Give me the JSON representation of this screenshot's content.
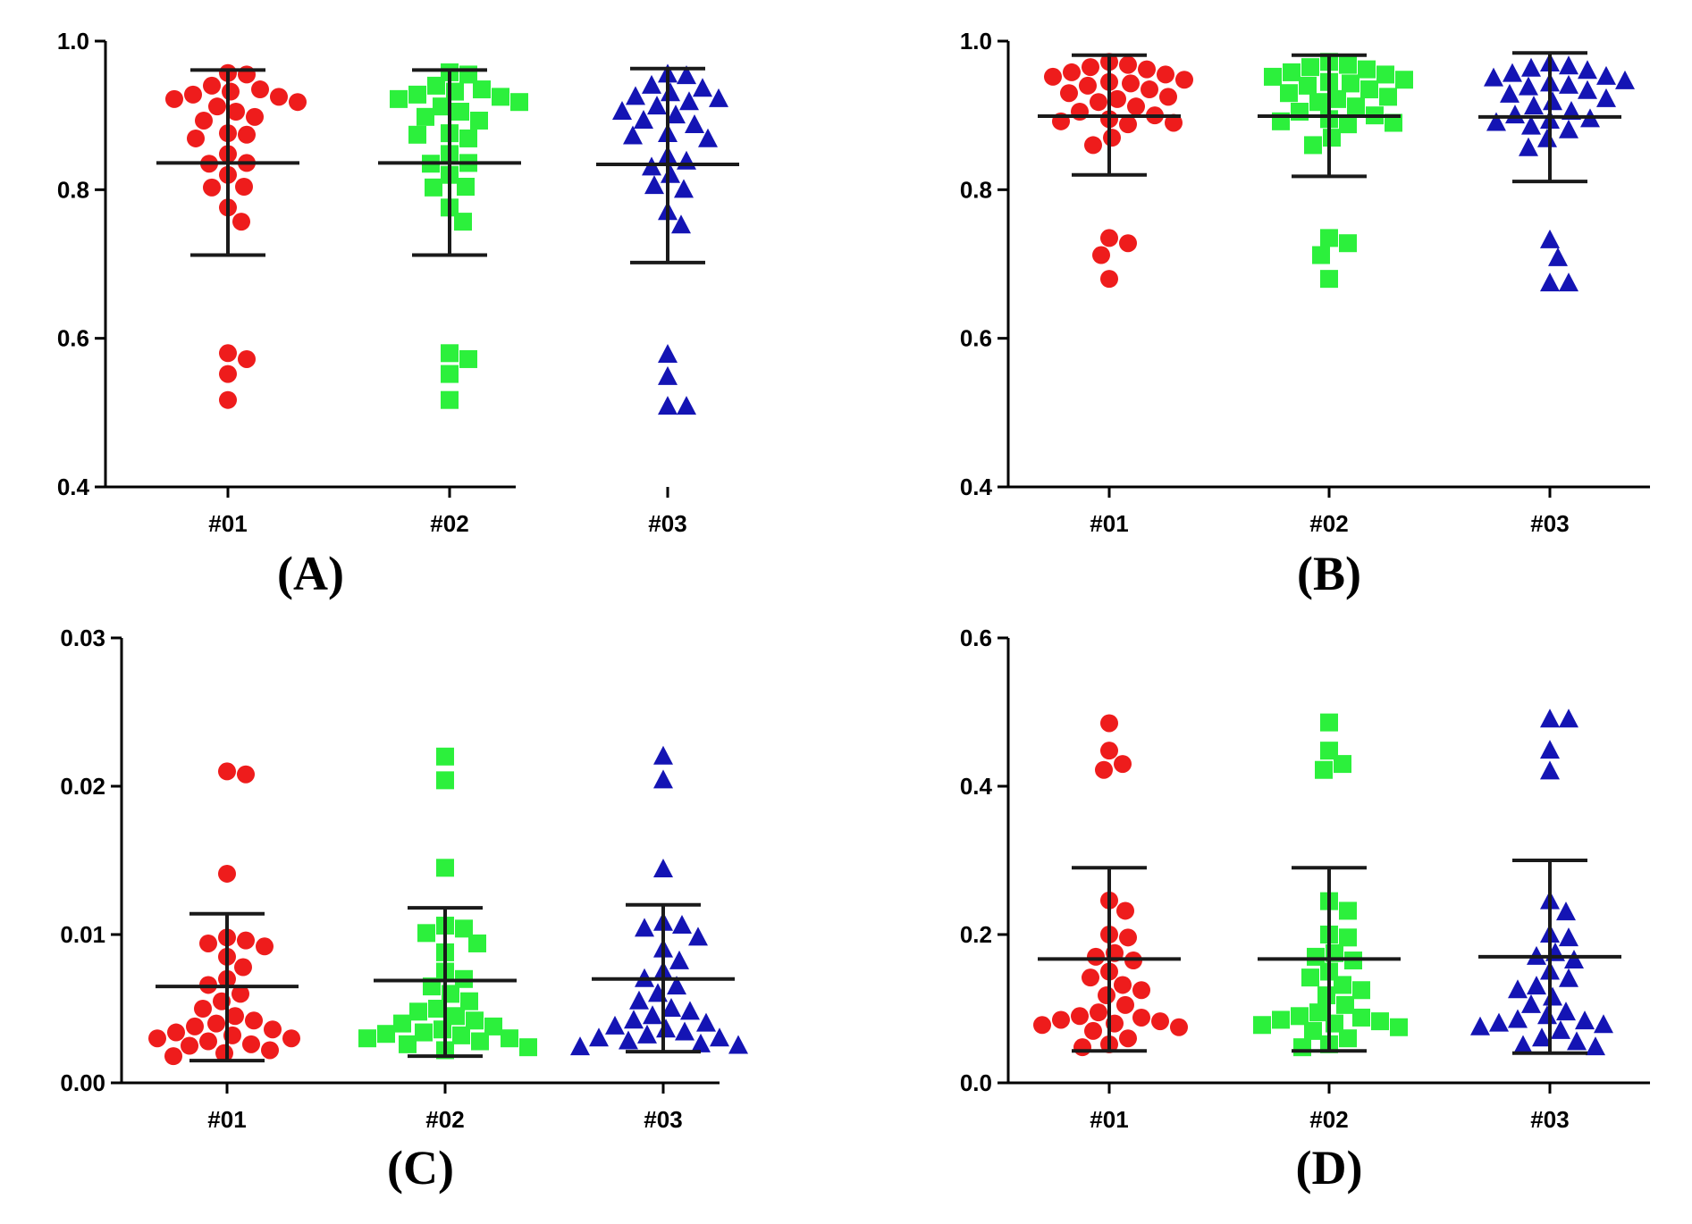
{
  "colors": {
    "#01": "#ee1c1c",
    "#02": "#2cf03c",
    "#03": "#1414b4",
    "axis": "#000000",
    "error_bar": "#1a1a1a"
  },
  "chart_data": [
    {
      "type": "scatter",
      "panel_label": "(A)",
      "categories": [
        "#01",
        "#02",
        "#03"
      ],
      "markers": [
        "circle",
        "square",
        "triangle"
      ],
      "ylim": [
        0.4,
        1.0
      ],
      "yticks": [
        0.4,
        0.6,
        0.8,
        1.0
      ],
      "ytick_labels": [
        "0.4",
        "0.6",
        "0.8",
        "1.0"
      ],
      "series": [
        {
          "name": "#01",
          "mean": 0.836,
          "sd_low": 0.712,
          "sd_high": 0.961,
          "values": [
            0.957,
            0.955,
            0.94,
            0.935,
            0.932,
            0.928,
            0.925,
            0.922,
            0.918,
            0.912,
            0.905,
            0.898,
            0.893,
            0.876,
            0.874,
            0.869,
            0.848,
            0.836,
            0.835,
            0.82,
            0.804,
            0.803,
            0.776,
            0.757,
            0.58,
            0.572,
            0.552,
            0.517
          ]
        },
        {
          "name": "#02",
          "mean": 0.836,
          "sd_low": 0.712,
          "sd_high": 0.961,
          "values": [
            0.958,
            0.955,
            0.94,
            0.935,
            0.932,
            0.928,
            0.925,
            0.922,
            0.918,
            0.912,
            0.905,
            0.898,
            0.893,
            0.876,
            0.874,
            0.869,
            0.848,
            0.836,
            0.835,
            0.82,
            0.804,
            0.803,
            0.776,
            0.757,
            0.58,
            0.572,
            0.552,
            0.517
          ]
        },
        {
          "name": "#03",
          "mean": 0.834,
          "sd_low": 0.702,
          "sd_high": 0.963,
          "values": [
            0.955,
            0.953,
            0.94,
            0.936,
            0.93,
            0.925,
            0.922,
            0.918,
            0.912,
            0.905,
            0.9,
            0.893,
            0.887,
            0.875,
            0.872,
            0.868,
            0.845,
            0.838,
            0.83,
            0.82,
            0.805,
            0.8,
            0.77,
            0.752,
            0.578,
            0.548,
            0.508,
            0.508
          ]
        }
      ]
    },
    {
      "type": "scatter",
      "panel_label": "(B)",
      "categories": [
        "#01",
        "#02",
        "#03"
      ],
      "markers": [
        "circle",
        "square",
        "triangle"
      ],
      "ylim": [
        0.4,
        1.0
      ],
      "yticks": [
        0.4,
        0.6,
        0.8,
        1.0
      ],
      "ytick_labels": [
        "0.4",
        "0.6",
        "0.8",
        "1.0"
      ],
      "series": [
        {
          "name": "#01",
          "mean": 0.899,
          "sd_low": 0.82,
          "sd_high": 0.981,
          "values": [
            0.972,
            0.968,
            0.965,
            0.962,
            0.958,
            0.955,
            0.952,
            0.948,
            0.945,
            0.943,
            0.94,
            0.935,
            0.93,
            0.925,
            0.922,
            0.918,
            0.912,
            0.905,
            0.9,
            0.895,
            0.892,
            0.89,
            0.888,
            0.87,
            0.86,
            0.735,
            0.728,
            0.712,
            0.68
          ]
        },
        {
          "name": "#02",
          "mean": 0.899,
          "sd_low": 0.818,
          "sd_high": 0.981,
          "values": [
            0.972,
            0.968,
            0.965,
            0.962,
            0.958,
            0.955,
            0.952,
            0.948,
            0.945,
            0.943,
            0.94,
            0.935,
            0.93,
            0.925,
            0.922,
            0.918,
            0.912,
            0.905,
            0.9,
            0.895,
            0.892,
            0.89,
            0.888,
            0.87,
            0.86,
            0.735,
            0.728,
            0.712,
            0.68
          ]
        },
        {
          "name": "#03",
          "mean": 0.898,
          "sd_low": 0.811,
          "sd_high": 0.984,
          "values": [
            0.97,
            0.966,
            0.963,
            0.96,
            0.956,
            0.952,
            0.95,
            0.946,
            0.943,
            0.94,
            0.938,
            0.933,
            0.928,
            0.922,
            0.918,
            0.912,
            0.905,
            0.9,
            0.895,
            0.893,
            0.89,
            0.885,
            0.88,
            0.868,
            0.856,
            0.732,
            0.708,
            0.674,
            0.674
          ]
        }
      ]
    },
    {
      "type": "scatter",
      "panel_label": "(C)",
      "categories": [
        "#01",
        "#02",
        "#03"
      ],
      "markers": [
        "circle",
        "square",
        "triangle"
      ],
      "ylim": [
        0.0,
        0.03
      ],
      "yticks": [
        0.0,
        0.01,
        0.02,
        0.03
      ],
      "ytick_labels": [
        "0.00",
        "0.01",
        "0.02",
        "0.03"
      ],
      "series": [
        {
          "name": "#01",
          "mean": 0.0065,
          "sd_low": 0.0015,
          "sd_high": 0.0114,
          "values": [
            0.021,
            0.0208,
            0.0141,
            0.0098,
            0.0096,
            0.0094,
            0.0092,
            0.0085,
            0.0078,
            0.007,
            0.0066,
            0.006,
            0.0055,
            0.005,
            0.0045,
            0.0042,
            0.004,
            0.0038,
            0.0036,
            0.0034,
            0.0032,
            0.003,
            0.003,
            0.0028,
            0.0026,
            0.0025,
            0.0022,
            0.002,
            0.0018
          ]
        },
        {
          "name": "#02",
          "mean": 0.0069,
          "sd_low": 0.0018,
          "sd_high": 0.0118,
          "values": [
            0.022,
            0.0204,
            0.0145,
            0.0106,
            0.0104,
            0.0101,
            0.0094,
            0.0088,
            0.0075,
            0.007,
            0.0065,
            0.006,
            0.0055,
            0.005,
            0.0048,
            0.0045,
            0.0042,
            0.004,
            0.0038,
            0.0036,
            0.0034,
            0.0033,
            0.0032,
            0.003,
            0.003,
            0.0028,
            0.0026,
            0.0024,
            0.0022
          ]
        },
        {
          "name": "#03",
          "mean": 0.007,
          "sd_low": 0.0021,
          "sd_high": 0.012,
          "values": [
            0.022,
            0.0204,
            0.0144,
            0.0108,
            0.0106,
            0.0104,
            0.0098,
            0.009,
            0.0082,
            0.0075,
            0.007,
            0.0065,
            0.006,
            0.0055,
            0.005,
            0.0048,
            0.0045,
            0.0042,
            0.004,
            0.0038,
            0.0036,
            0.0034,
            0.0032,
            0.003,
            0.003,
            0.0028,
            0.0026,
            0.0025,
            0.0024
          ]
        }
      ]
    },
    {
      "type": "scatter",
      "panel_label": "(D)",
      "categories": [
        "#01",
        "#02",
        "#03"
      ],
      "markers": [
        "circle",
        "square",
        "triangle"
      ],
      "ylim": [
        0.0,
        0.6
      ],
      "yticks": [
        0.0,
        0.2,
        0.4,
        0.6
      ],
      "ytick_labels": [
        "0.0",
        "0.2",
        "0.4",
        "0.6"
      ],
      "series": [
        {
          "name": "#01",
          "mean": 0.167,
          "sd_low": 0.043,
          "sd_high": 0.29,
          "values": [
            0.485,
            0.448,
            0.43,
            0.422,
            0.246,
            0.232,
            0.2,
            0.196,
            0.175,
            0.17,
            0.165,
            0.15,
            0.142,
            0.132,
            0.125,
            0.118,
            0.105,
            0.095,
            0.09,
            0.088,
            0.085,
            0.083,
            0.08,
            0.078,
            0.075,
            0.07,
            0.06,
            0.052,
            0.048
          ]
        },
        {
          "name": "#02",
          "mean": 0.167,
          "sd_low": 0.043,
          "sd_high": 0.29,
          "values": [
            0.486,
            0.448,
            0.43,
            0.422,
            0.245,
            0.232,
            0.2,
            0.196,
            0.175,
            0.17,
            0.165,
            0.15,
            0.142,
            0.132,
            0.125,
            0.118,
            0.105,
            0.095,
            0.09,
            0.088,
            0.085,
            0.083,
            0.08,
            0.078,
            0.075,
            0.07,
            0.06,
            0.052,
            0.048
          ]
        },
        {
          "name": "#03",
          "mean": 0.17,
          "sd_low": 0.04,
          "sd_high": 0.3,
          "values": [
            0.49,
            0.49,
            0.448,
            0.42,
            0.245,
            0.23,
            0.2,
            0.195,
            0.175,
            0.17,
            0.165,
            0.15,
            0.14,
            0.13,
            0.125,
            0.115,
            0.105,
            0.095,
            0.09,
            0.085,
            0.083,
            0.08,
            0.078,
            0.075,
            0.07,
            0.06,
            0.055,
            0.05,
            0.048
          ]
        }
      ]
    }
  ]
}
